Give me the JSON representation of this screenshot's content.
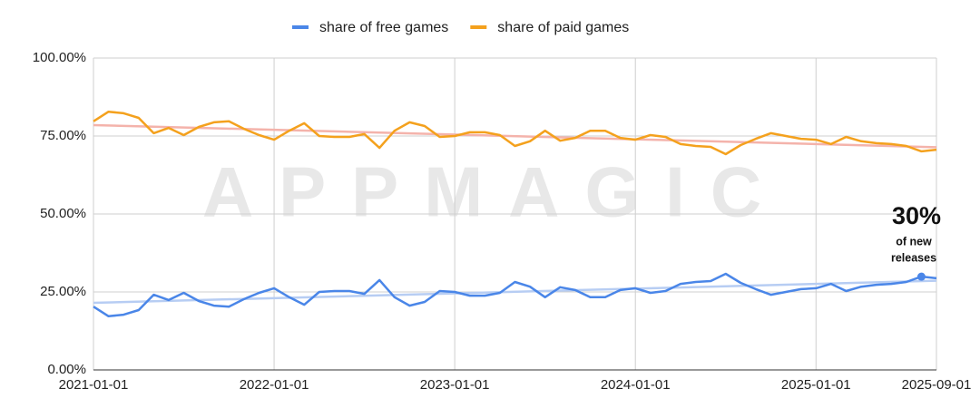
{
  "chart_data": {
    "type": "line",
    "categories": [
      "2021-01-01",
      null,
      null,
      null,
      null,
      null,
      null,
      null,
      null,
      null,
      null,
      null,
      "2022-01-01",
      null,
      null,
      null,
      null,
      null,
      null,
      null,
      null,
      null,
      null,
      null,
      "2023-01-01",
      null,
      null,
      null,
      null,
      null,
      null,
      null,
      null,
      null,
      null,
      null,
      "2024-01-01",
      null,
      null,
      null,
      null,
      null,
      null,
      null,
      null,
      null,
      null,
      null,
      "2025-01-01",
      null,
      null,
      null,
      null,
      null,
      null,
      null,
      "2025-09-01"
    ],
    "series": [
      {
        "name": "share of free games",
        "color": "#4a86e8",
        "values": [
          20.3,
          17.2,
          17.7,
          19.2,
          24.1,
          22.4,
          24.7,
          22.1,
          20.6,
          20.3,
          22.7,
          24.7,
          26.2,
          23.3,
          20.9,
          25.0,
          25.3,
          25.3,
          24.4,
          28.8,
          23.3,
          20.6,
          21.8,
          25.3,
          25.0,
          23.8,
          23.8,
          24.7,
          28.2,
          26.7,
          23.3,
          26.5,
          25.6,
          23.3,
          23.3,
          25.6,
          26.2,
          24.7,
          25.3,
          27.6,
          28.2,
          28.5,
          30.8,
          27.9,
          25.9,
          24.1,
          25.0,
          25.9,
          26.2,
          27.6,
          25.3,
          26.7,
          27.3,
          27.6,
          28.2,
          29.9,
          29.4
        ],
        "trendline": {
          "color": "#b7cdf3",
          "values": [
            21.5,
            28.6
          ]
        }
      },
      {
        "name": "share of paid games",
        "color": "#f4a11d",
        "values": [
          79.7,
          82.8,
          82.3,
          80.8,
          75.9,
          77.6,
          75.3,
          77.9,
          79.4,
          79.7,
          77.3,
          75.3,
          73.8,
          76.7,
          79.1,
          75.0,
          74.7,
          74.7,
          75.6,
          71.2,
          76.7,
          79.4,
          78.2,
          74.7,
          75.0,
          76.2,
          76.2,
          75.3,
          71.8,
          73.3,
          76.7,
          73.5,
          74.4,
          76.7,
          76.7,
          74.4,
          73.8,
          75.3,
          74.7,
          72.4,
          71.8,
          71.5,
          69.2,
          72.1,
          74.1,
          75.9,
          75.0,
          74.1,
          73.8,
          72.4,
          74.7,
          73.3,
          72.7,
          72.4,
          71.8,
          70.1,
          70.6
        ],
        "trendline": {
          "color": "#f4b3ab",
          "values": [
            78.5,
            71.4
          ]
        }
      }
    ],
    "ylim": [
      0,
      100
    ],
    "yticks": [
      {
        "value": 0,
        "label": "0.00%"
      },
      {
        "value": 25,
        "label": "25.00%"
      },
      {
        "value": 50,
        "label": "50.00%"
      },
      {
        "value": 75,
        "label": "75.00%"
      },
      {
        "value": 100,
        "label": "100.00%"
      }
    ],
    "grid": true,
    "legend": "top",
    "watermark": "APPMAGIC",
    "annotation": {
      "title": "30%",
      "lines": [
        "of new",
        "releases"
      ]
    }
  }
}
